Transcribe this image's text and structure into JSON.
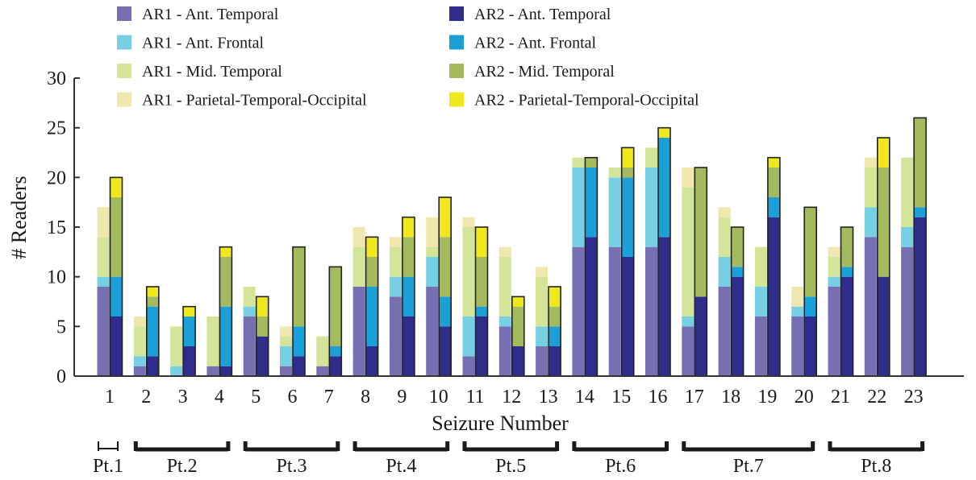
{
  "chart_data": {
    "type": "bar",
    "xlabel": "Seizure Number",
    "ylabel": "# Readers",
    "ylim": [
      0,
      30
    ],
    "yticks": [
      0,
      5,
      10,
      15,
      20,
      25,
      30
    ],
    "categories": [
      "1",
      "2",
      "3",
      "4",
      "5",
      "6",
      "7",
      "8",
      "9",
      "10",
      "11",
      "12",
      "13",
      "14",
      "15",
      "16",
      "17",
      "18",
      "19",
      "20",
      "21",
      "22",
      "23"
    ],
    "region_order": [
      "Ant. Temporal",
      "Ant. Frontal",
      "Mid. Temporal",
      "Parietal-Temporal-Occipital"
    ],
    "series": [
      {
        "name": "AR1 - Ant. Temporal",
        "reader": "AR1",
        "region": "Ant. Temporal",
        "color": "#7670b3",
        "values": [
          9,
          1,
          0,
          1,
          6,
          1,
          1,
          9,
          8,
          9,
          2,
          5,
          3,
          13,
          13,
          13,
          5,
          9,
          6,
          6,
          9,
          14,
          13
        ]
      },
      {
        "name": "AR1 - Ant. Frontal",
        "reader": "AR1",
        "region": "Ant. Frontal",
        "color": "#76cfe3",
        "values": [
          1,
          1,
          1,
          0,
          1,
          2,
          0,
          0,
          2,
          3,
          4,
          1,
          2,
          8,
          7,
          8,
          1,
          3,
          3,
          1,
          1,
          3,
          2
        ]
      },
      {
        "name": "AR1 - Mid. Temporal",
        "reader": "AR1",
        "region": "Mid. Temporal",
        "color": "#d4e59a",
        "values": [
          4,
          3,
          4,
          5,
          2,
          1,
          3,
          4,
          3,
          1,
          9,
          6,
          5,
          1,
          1,
          2,
          13,
          4,
          4,
          0,
          2,
          4,
          7
        ]
      },
      {
        "name": "AR1 - Parietal-Temporal-Occipital",
        "reader": "AR1",
        "region": "Parietal-Temporal-Occipital",
        "color": "#efe7ad",
        "values": [
          3,
          1,
          0,
          0,
          0,
          1,
          0,
          2,
          1,
          3,
          1,
          1,
          1,
          0,
          0,
          0,
          2,
          1,
          0,
          2,
          1,
          1,
          0
        ]
      },
      {
        "name": "AR2 - Ant. Temporal",
        "reader": "AR2",
        "region": "Ant. Temporal",
        "color": "#2e2d8c",
        "values": [
          6,
          2,
          3,
          1,
          4,
          2,
          2,
          3,
          6,
          5,
          6,
          3,
          3,
          14,
          12,
          14,
          8,
          10,
          16,
          6,
          10,
          10,
          16
        ]
      },
      {
        "name": "AR2 - Ant. Frontal",
        "reader": "AR2",
        "region": "Ant. Frontal",
        "color": "#1aa0d6",
        "values": [
          4,
          5,
          3,
          6,
          0,
          3,
          1,
          6,
          4,
          3,
          1,
          0,
          2,
          7,
          8,
          10,
          0,
          1,
          2,
          2,
          1,
          0,
          1
        ]
      },
      {
        "name": "AR2 - Mid. Temporal",
        "reader": "AR2",
        "region": "Mid. Temporal",
        "color": "#a3bb5e",
        "values": [
          8,
          1,
          0,
          5,
          2,
          8,
          8,
          3,
          4,
          6,
          5,
          4,
          2,
          1,
          1,
          0,
          13,
          4,
          3,
          9,
          4,
          11,
          9
        ]
      },
      {
        "name": "AR2 - Parietal-Temporal-Occipital",
        "reader": "AR2",
        "region": "Parietal-Temporal-Occipital",
        "color": "#f0e81c",
        "values": [
          2,
          1,
          1,
          1,
          2,
          0,
          0,
          2,
          2,
          4,
          3,
          1,
          2,
          0,
          2,
          1,
          0,
          0,
          1,
          0,
          0,
          3,
          0
        ]
      }
    ],
    "patients": [
      {
        "label": "Pt.1",
        "seizures": [
          "1"
        ]
      },
      {
        "label": "Pt.2",
        "seizures": [
          "2",
          "3",
          "4"
        ]
      },
      {
        "label": "Pt.3",
        "seizures": [
          "5",
          "6",
          "7"
        ]
      },
      {
        "label": "Pt.4",
        "seizures": [
          "8",
          "9",
          "10"
        ]
      },
      {
        "label": "Pt.5",
        "seizures": [
          "11",
          "12",
          "13"
        ]
      },
      {
        "label": "Pt.6",
        "seizures": [
          "14",
          "15",
          "16"
        ]
      },
      {
        "label": "Pt.7",
        "seizures": [
          "17",
          "18",
          "19",
          "20"
        ]
      },
      {
        "label": "Pt.8",
        "seizures": [
          "21",
          "22",
          "23"
        ]
      }
    ],
    "legend": {
      "placement": "top-left",
      "columns": 2
    },
    "grid": false
  }
}
